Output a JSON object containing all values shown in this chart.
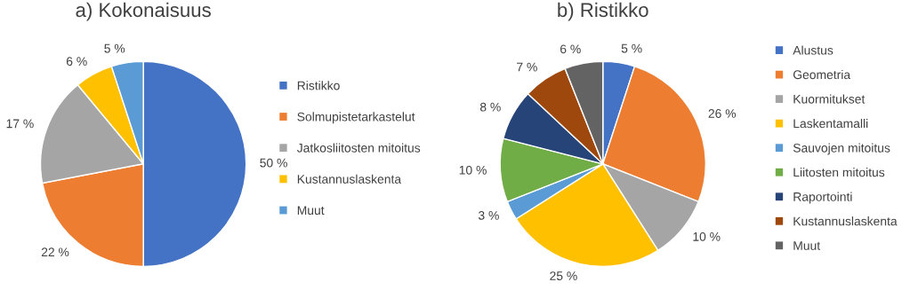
{
  "chart_data": [
    {
      "type": "pie",
      "title": "a) Kokonaisuus",
      "legend": "right",
      "categories": [
        "Ristikko",
        "Solmupistetarkastelut",
        "Jatkosliitosten mitoitus",
        "Kustannuslaskenta",
        "Muut"
      ],
      "values": [
        50,
        22,
        17,
        6,
        5
      ],
      "value_labels": [
        "50 %",
        "22 %",
        "17 %",
        "6 %",
        "5 %"
      ],
      "colors": [
        "#4472c4",
        "#ed7d31",
        "#a5a5a5",
        "#ffc000",
        "#5b9bd5"
      ]
    },
    {
      "type": "pie",
      "title": "b) Ristikko",
      "legend": "right",
      "categories": [
        "Alustus",
        "Geometria",
        "Kuormitukset",
        "Laskentamalli",
        "Sauvojen mitoitus",
        "Liitosten mitoitus",
        "Raportointi",
        "Kustannuslaskenta",
        "Muut"
      ],
      "values": [
        5,
        26,
        10,
        25,
        3,
        10,
        8,
        7,
        6
      ],
      "value_labels": [
        "5 %",
        "26 %",
        "10 %",
        "25 %",
        "3 %",
        "10 %",
        "8 %",
        "7 %",
        "6 %"
      ],
      "colors": [
        "#4472c4",
        "#ed7d31",
        "#a5a5a5",
        "#ffc000",
        "#5b9bd5",
        "#70ad47",
        "#264478",
        "#9e480e",
        "#636363"
      ]
    }
  ]
}
